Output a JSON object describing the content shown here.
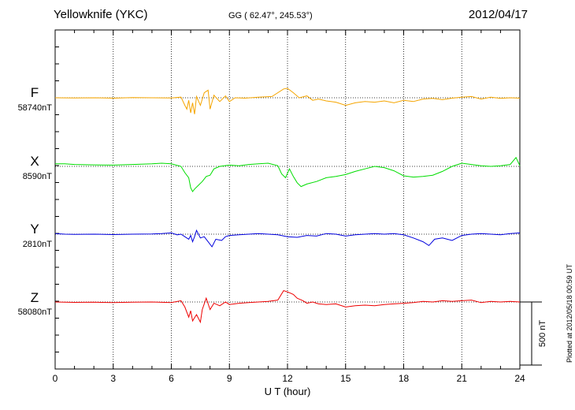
{
  "header": {
    "station": "Yellowknife (YKC)",
    "coords": "GG ( 62.47°, 245.53°)",
    "date": "2012/04/17"
  },
  "footer_note": "Plotted at 2012/05/18 00:59 UT",
  "chart_data": {
    "type": "line",
    "xlabel": "U T (hour)",
    "xlim": [
      0,
      24
    ],
    "xticks": [
      0,
      3,
      6,
      9,
      12,
      15,
      18,
      21,
      24
    ],
    "grid": true,
    "scale_bar": {
      "label": "500 nT",
      "value_nT": 500
    },
    "series": [
      {
        "name": "F",
        "baseline_label": "58740nT",
        "color": "#f5a500",
        "values": [
          [
            0,
            0
          ],
          [
            1,
            -2
          ],
          [
            2,
            0
          ],
          [
            3,
            -3
          ],
          [
            4,
            1
          ],
          [
            5,
            0
          ],
          [
            6,
            -2
          ],
          [
            6.5,
            5
          ],
          [
            6.7,
            -60
          ],
          [
            6.8,
            -90
          ],
          [
            6.9,
            -20
          ],
          [
            7.0,
            -120
          ],
          [
            7.1,
            -40
          ],
          [
            7.2,
            -130
          ],
          [
            7.3,
            10
          ],
          [
            7.5,
            -60
          ],
          [
            7.7,
            40
          ],
          [
            7.9,
            60
          ],
          [
            8.0,
            -90
          ],
          [
            8.2,
            20
          ],
          [
            8.5,
            -30
          ],
          [
            8.8,
            15
          ],
          [
            9.0,
            -30
          ],
          [
            9.3,
            0
          ],
          [
            9.8,
            -3
          ],
          [
            10.5,
            5
          ],
          [
            11.2,
            10
          ],
          [
            11.8,
            70
          ],
          [
            12.0,
            75
          ],
          [
            12.3,
            40
          ],
          [
            12.6,
            0
          ],
          [
            13.0,
            15
          ],
          [
            13.3,
            -20
          ],
          [
            13.6,
            -10
          ],
          [
            14.0,
            -25
          ],
          [
            14.5,
            -35
          ],
          [
            15.0,
            -60
          ],
          [
            15.5,
            -40
          ],
          [
            16.0,
            -30
          ],
          [
            16.5,
            -35
          ],
          [
            17.0,
            -25
          ],
          [
            17.5,
            -40
          ],
          [
            18.0,
            -20
          ],
          [
            18.5,
            -30
          ],
          [
            19.0,
            -10
          ],
          [
            19.5,
            -5
          ],
          [
            20.0,
            -15
          ],
          [
            20.5,
            -3
          ],
          [
            21.0,
            5
          ],
          [
            21.5,
            10
          ],
          [
            22.0,
            -10
          ],
          [
            22.5,
            5
          ],
          [
            23.0,
            -5
          ],
          [
            23.5,
            0
          ],
          [
            24.0,
            -3
          ]
        ]
      },
      {
        "name": "X",
        "baseline_label": "8590nT",
        "color": "#00dd00",
        "values": [
          [
            0,
            20
          ],
          [
            0.5,
            20
          ],
          [
            1,
            15
          ],
          [
            2,
            12
          ],
          [
            3,
            10
          ],
          [
            4,
            15
          ],
          [
            5,
            20
          ],
          [
            5.5,
            25
          ],
          [
            6.0,
            20
          ],
          [
            6.5,
            0
          ],
          [
            6.7,
            -50
          ],
          [
            6.9,
            -90
          ],
          [
            7.0,
            -170
          ],
          [
            7.1,
            -200
          ],
          [
            7.2,
            -180
          ],
          [
            7.4,
            -150
          ],
          [
            7.6,
            -120
          ],
          [
            7.8,
            -80
          ],
          [
            8.0,
            -70
          ],
          [
            8.2,
            -20
          ],
          [
            8.5,
            0
          ],
          [
            9.0,
            10
          ],
          [
            9.5,
            5
          ],
          [
            10.0,
            15
          ],
          [
            10.5,
            20
          ],
          [
            11.0,
            25
          ],
          [
            11.5,
            5
          ],
          [
            11.7,
            -60
          ],
          [
            11.9,
            -90
          ],
          [
            12.1,
            -20
          ],
          [
            12.3,
            -80
          ],
          [
            12.5,
            -130
          ],
          [
            12.7,
            -160
          ],
          [
            13.0,
            -140
          ],
          [
            13.5,
            -120
          ],
          [
            14.0,
            -90
          ],
          [
            14.5,
            -80
          ],
          [
            15.0,
            -65
          ],
          [
            15.5,
            -40
          ],
          [
            16.0,
            -20
          ],
          [
            16.5,
            0
          ],
          [
            17.0,
            -10
          ],
          [
            17.5,
            -35
          ],
          [
            18.0,
            -75
          ],
          [
            18.5,
            -85
          ],
          [
            19.0,
            -80
          ],
          [
            19.5,
            -70
          ],
          [
            20.0,
            -40
          ],
          [
            20.5,
            0
          ],
          [
            21.0,
            25
          ],
          [
            21.5,
            15
          ],
          [
            22.0,
            5
          ],
          [
            22.5,
            0
          ],
          [
            23.0,
            5
          ],
          [
            23.5,
            15
          ],
          [
            23.8,
            70
          ],
          [
            24.0,
            5
          ]
        ]
      },
      {
        "name": "Y",
        "baseline_label": "2810nT",
        "color": "#0000dd",
        "values": [
          [
            0,
            5
          ],
          [
            0.5,
            0
          ],
          [
            1,
            -2
          ],
          [
            2,
            0
          ],
          [
            3,
            -3
          ],
          [
            4,
            0
          ],
          [
            5,
            2
          ],
          [
            5.5,
            5
          ],
          [
            6.0,
            10
          ],
          [
            6.3,
            -5
          ],
          [
            6.5,
            0
          ],
          [
            6.7,
            -20
          ],
          [
            6.9,
            -40
          ],
          [
            7.0,
            -10
          ],
          [
            7.1,
            -60
          ],
          [
            7.2,
            -20
          ],
          [
            7.3,
            30
          ],
          [
            7.5,
            -30
          ],
          [
            7.7,
            -20
          ],
          [
            7.9,
            -60
          ],
          [
            8.1,
            -100
          ],
          [
            8.3,
            -40
          ],
          [
            8.6,
            -50
          ],
          [
            8.8,
            -20
          ],
          [
            9.0,
            -10
          ],
          [
            9.5,
            -5
          ],
          [
            10.0,
            0
          ],
          [
            10.5,
            5
          ],
          [
            11.0,
            0
          ],
          [
            11.5,
            -5
          ],
          [
            12.0,
            -20
          ],
          [
            12.5,
            -25
          ],
          [
            13.0,
            -10
          ],
          [
            13.5,
            -15
          ],
          [
            14.0,
            5
          ],
          [
            14.5,
            0
          ],
          [
            15.0,
            -15
          ],
          [
            15.5,
            -5
          ],
          [
            16.0,
            0
          ],
          [
            16.5,
            5
          ],
          [
            17.0,
            0
          ],
          [
            17.5,
            5
          ],
          [
            18.0,
            -5
          ],
          [
            18.5,
            -30
          ],
          [
            19.0,
            -60
          ],
          [
            19.3,
            -90
          ],
          [
            19.6,
            -40
          ],
          [
            20.0,
            -30
          ],
          [
            20.5,
            -50
          ],
          [
            21.0,
            -10
          ],
          [
            21.5,
            0
          ],
          [
            22.0,
            5
          ],
          [
            22.5,
            0
          ],
          [
            23.0,
            -5
          ],
          [
            23.5,
            5
          ],
          [
            24.0,
            10
          ]
        ]
      },
      {
        "name": "Z",
        "baseline_label": "58080nT",
        "color": "#ee0000",
        "values": [
          [
            0,
            0
          ],
          [
            1,
            -3
          ],
          [
            2,
            -2
          ],
          [
            3,
            -5
          ],
          [
            4,
            -1
          ],
          [
            5,
            0
          ],
          [
            6.0,
            -5
          ],
          [
            6.5,
            10
          ],
          [
            6.7,
            -40
          ],
          [
            6.9,
            -120
          ],
          [
            7.0,
            -70
          ],
          [
            7.1,
            -150
          ],
          [
            7.3,
            -100
          ],
          [
            7.5,
            -160
          ],
          [
            7.6,
            -60
          ],
          [
            7.8,
            30
          ],
          [
            8.0,
            -60
          ],
          [
            8.2,
            -10
          ],
          [
            8.5,
            -30
          ],
          [
            8.8,
            0
          ],
          [
            9.0,
            -20
          ],
          [
            9.5,
            -10
          ],
          [
            10.0,
            -5
          ],
          [
            10.5,
            0
          ],
          [
            11.0,
            5
          ],
          [
            11.5,
            15
          ],
          [
            11.8,
            90
          ],
          [
            12.0,
            80
          ],
          [
            12.3,
            60
          ],
          [
            12.5,
            30
          ],
          [
            12.8,
            10
          ],
          [
            13.0,
            -10
          ],
          [
            13.3,
            0
          ],
          [
            13.6,
            -15
          ],
          [
            14.0,
            -20
          ],
          [
            14.5,
            -15
          ],
          [
            15.0,
            -40
          ],
          [
            15.5,
            -30
          ],
          [
            16.0,
            -25
          ],
          [
            16.5,
            -30
          ],
          [
            17.0,
            -20
          ],
          [
            17.5,
            -15
          ],
          [
            18.0,
            -10
          ],
          [
            18.5,
            -5
          ],
          [
            19.0,
            5
          ],
          [
            19.5,
            0
          ],
          [
            20.0,
            10
          ],
          [
            20.5,
            5
          ],
          [
            21.0,
            10
          ],
          [
            21.5,
            15
          ],
          [
            22.0,
            -5
          ],
          [
            22.5,
            5
          ],
          [
            23.0,
            0
          ],
          [
            23.5,
            5
          ],
          [
            24.0,
            0
          ]
        ]
      }
    ]
  }
}
